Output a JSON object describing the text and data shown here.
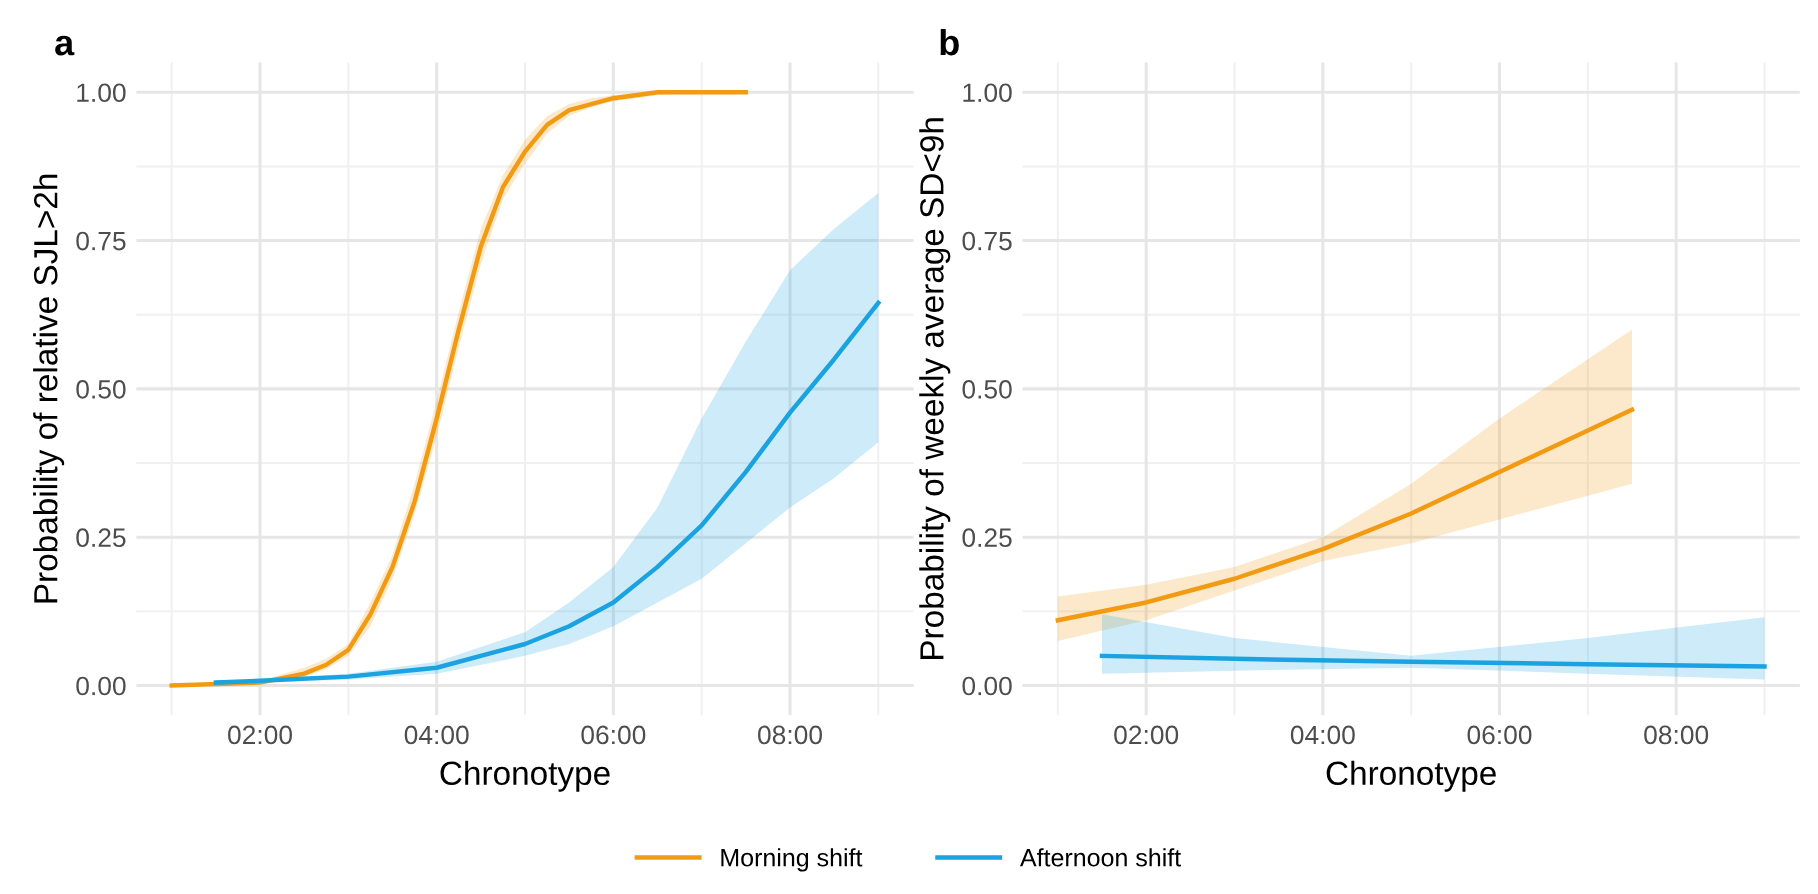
{
  "chart_data": [
    {
      "type": "line",
      "title": "a",
      "xlabel": "Chronotype",
      "ylabel": "Probability of relative SJL>2h",
      "xlim": [
        0.6,
        9.4
      ],
      "ylim": [
        -0.05,
        1.05
      ],
      "xticks": [
        {
          "value": 2,
          "label": "02:00"
        },
        {
          "value": 4,
          "label": "04:00"
        },
        {
          "value": 6,
          "label": "06:00"
        },
        {
          "value": 8,
          "label": "08:00"
        }
      ],
      "yticks": [
        {
          "value": 0,
          "label": "0.00"
        },
        {
          "value": 0.25,
          "label": "0.25"
        },
        {
          "value": 0.5,
          "label": "0.50"
        },
        {
          "value": 0.75,
          "label": "0.75"
        },
        {
          "value": 1,
          "label": "1.00"
        }
      ],
      "grid": true,
      "legend": "bottom",
      "line_style": "solid",
      "marker": "none",
      "series": [
        {
          "name": "Morning shift",
          "color": "#f29b12",
          "x": [
            1,
            2,
            2.5,
            2.75,
            3,
            3.25,
            3.5,
            3.75,
            4,
            4.25,
            4.5,
            4.75,
            5,
            5.25,
            5.5,
            5.75,
            6,
            6.5,
            7,
            7.5
          ],
          "values": [
            0,
            0.005,
            0.02,
            0.035,
            0.06,
            0.12,
            0.2,
            0.31,
            0.45,
            0.6,
            0.74,
            0.84,
            0.9,
            0.945,
            0.97,
            0.98,
            0.99,
            1.0,
            1.0,
            1.0
          ],
          "lower": [
            0,
            0.003,
            0.015,
            0.028,
            0.05,
            0.1,
            0.18,
            0.29,
            0.42,
            0.57,
            0.71,
            0.82,
            0.88,
            0.93,
            0.96,
            0.975,
            0.985,
            0.995,
            1.0,
            1.0
          ],
          "upper": [
            0,
            0.008,
            0.03,
            0.045,
            0.07,
            0.14,
            0.22,
            0.34,
            0.48,
            0.63,
            0.77,
            0.86,
            0.92,
            0.96,
            0.98,
            0.99,
            0.995,
            1.0,
            1.0,
            1.0
          ]
        },
        {
          "name": "Afternoon shift",
          "color": "#1aa3e0",
          "x": [
            1.5,
            2,
            3,
            4,
            5,
            5.5,
            6,
            6.5,
            7,
            7.5,
            8,
            8.5,
            9
          ],
          "values": [
            0.005,
            0.008,
            0.015,
            0.03,
            0.07,
            0.1,
            0.14,
            0.2,
            0.27,
            0.36,
            0.46,
            0.55,
            0.645
          ],
          "lower": [
            0.003,
            0.005,
            0.01,
            0.02,
            0.05,
            0.07,
            0.1,
            0.14,
            0.18,
            0.24,
            0.3,
            0.35,
            0.41
          ],
          "upper": [
            0.008,
            0.01,
            0.02,
            0.04,
            0.09,
            0.14,
            0.2,
            0.3,
            0.45,
            0.58,
            0.7,
            0.77,
            0.83
          ]
        }
      ]
    },
    {
      "type": "line",
      "title": "b",
      "xlabel": "Chronotype",
      "ylabel": "Probability of weekly average SD<9h",
      "xlim": [
        0.6,
        9.4
      ],
      "ylim": [
        -0.05,
        1.05
      ],
      "xticks": [
        {
          "value": 2,
          "label": "02:00"
        },
        {
          "value": 4,
          "label": "04:00"
        },
        {
          "value": 6,
          "label": "06:00"
        },
        {
          "value": 8,
          "label": "08:00"
        }
      ],
      "yticks": [
        {
          "value": 0,
          "label": "0.00"
        },
        {
          "value": 0.25,
          "label": "0.25"
        },
        {
          "value": 0.5,
          "label": "0.50"
        },
        {
          "value": 0.75,
          "label": "0.75"
        },
        {
          "value": 1,
          "label": "1.00"
        }
      ],
      "grid": true,
      "line_style": "solid",
      "marker": "none",
      "series": [
        {
          "name": "Morning shift",
          "color": "#f29b12",
          "x": [
            1,
            2,
            3,
            4,
            5,
            6,
            7,
            7.5
          ],
          "values": [
            0.11,
            0.14,
            0.18,
            0.23,
            0.29,
            0.36,
            0.43,
            0.465
          ],
          "lower": [
            0.075,
            0.11,
            0.16,
            0.21,
            0.24,
            0.28,
            0.32,
            0.34
          ],
          "upper": [
            0.15,
            0.17,
            0.2,
            0.25,
            0.34,
            0.45,
            0.55,
            0.6
          ]
        },
        {
          "name": "Afternoon shift",
          "color": "#1aa3e0",
          "x": [
            1.5,
            3,
            5,
            7,
            9
          ],
          "values": [
            0.05,
            0.045,
            0.04,
            0.036,
            0.032
          ],
          "lower": [
            0.02,
            0.025,
            0.03,
            0.02,
            0.01
          ],
          "upper": [
            0.12,
            0.08,
            0.05,
            0.08,
            0.115
          ]
        }
      ]
    }
  ]
}
